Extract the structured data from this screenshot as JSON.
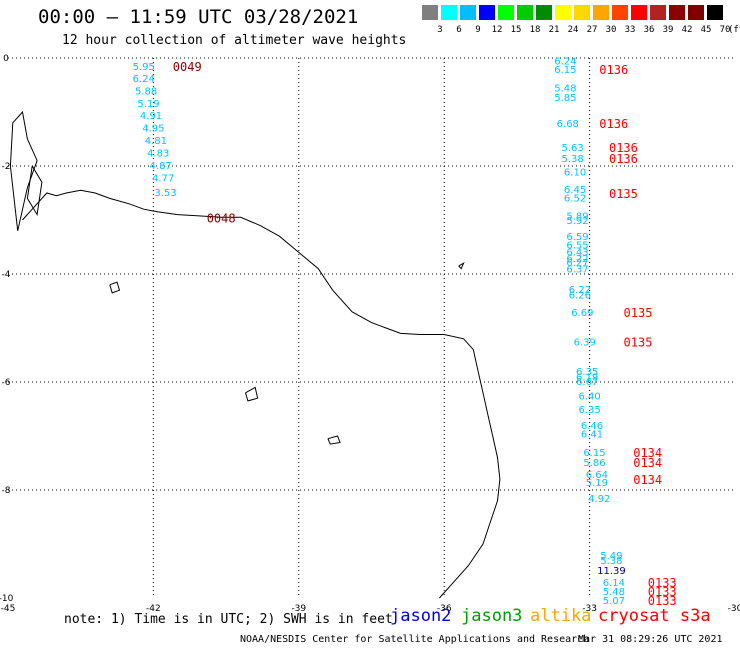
{
  "header": {
    "title": "00:00 – 11:59 UTC 03/28/2021",
    "subtitle": "12 hour collection of altimeter wave heights"
  },
  "legend": {
    "unit": "(ft)",
    "labels": [
      "3",
      "6",
      "9",
      "12",
      "15",
      "18",
      "21",
      "24",
      "27",
      "30",
      "33",
      "36",
      "39",
      "42",
      "45",
      "70"
    ],
    "colors": [
      "#7f7f7f",
      "#00ffff",
      "#00bfff",
      "#0000ff",
      "#00ff00",
      "#00cd00",
      "#008b00",
      "#ffff00",
      "#ffd700",
      "#ffa500",
      "#ff4500",
      "#ff0000",
      "#b22222",
      "#8b0000",
      "#800000",
      "#000000"
    ]
  },
  "axes": {
    "x_ticks": [
      "-45",
      "-42",
      "-39",
      "-36",
      "-33",
      "-30"
    ],
    "y_ticks": [
      "0",
      "-2",
      "-4",
      "-6",
      "-8",
      "-10"
    ]
  },
  "colors": {
    "wave_label": "#00c4ff",
    "wave_label_dark": "#00008b",
    "pass_jason3": "#8b0000",
    "pass_cryosat": "#ff0000",
    "coast": "#000000",
    "grid": "#000000"
  },
  "passes": [
    {
      "label": "0049",
      "lon": -41.6,
      "lat": -0.15,
      "color": "#8b0000"
    },
    {
      "label": "0048",
      "lon": -40.9,
      "lat": -2.95,
      "color": "#8b0000"
    },
    {
      "label": "0136",
      "lon": -32.8,
      "lat": -0.2,
      "color": "#ff0000"
    },
    {
      "label": "0136",
      "lon": -32.8,
      "lat": -1.2,
      "color": "#ff0000"
    },
    {
      "label": "0136",
      "lon": -32.6,
      "lat": -1.65,
      "color": "#ff0000"
    },
    {
      "label": "0136",
      "lon": -32.6,
      "lat": -1.85,
      "color": "#ff0000"
    },
    {
      "label": "0135",
      "lon": -32.6,
      "lat": -2.5,
      "color": "#ff0000"
    },
    {
      "label": "0135",
      "lon": -32.3,
      "lat": -4.7,
      "color": "#ff0000"
    },
    {
      "label": "0135",
      "lon": -32.3,
      "lat": -5.25,
      "color": "#ff0000"
    },
    {
      "label": "0134",
      "lon": -32.1,
      "lat": -7.3,
      "color": "#ff0000"
    },
    {
      "label": "0134",
      "lon": -32.1,
      "lat": -7.48,
      "color": "#ff0000"
    },
    {
      "label": "0134",
      "lon": -32.1,
      "lat": -7.8,
      "color": "#ff0000"
    },
    {
      "label": "0133",
      "lon": -31.8,
      "lat": -9.7,
      "color": "#ff0000"
    },
    {
      "label": "0133",
      "lon": -31.8,
      "lat": -9.87,
      "color": "#ff0000"
    },
    {
      "label": "0133",
      "lon": -31.8,
      "lat": -10.04,
      "color": "#ff0000"
    }
  ],
  "observations": [
    {
      "v": "5.95",
      "lon": -42.2,
      "lat": -0.15
    },
    {
      "v": "6.24",
      "lon": -42.2,
      "lat": -0.37
    },
    {
      "v": "5.88",
      "lon": -42.15,
      "lat": -0.6
    },
    {
      "v": "5.19",
      "lon": -42.1,
      "lat": -0.83
    },
    {
      "v": "4.91",
      "lon": -42.05,
      "lat": -1.06
    },
    {
      "v": "4.95",
      "lon": -42.0,
      "lat": -1.29
    },
    {
      "v": "4.81",
      "lon": -41.95,
      "lat": -1.52
    },
    {
      "v": "4.83",
      "lon": -41.9,
      "lat": -1.75
    },
    {
      "v": "4.87",
      "lon": -41.85,
      "lat": -1.98
    },
    {
      "v": "4.77",
      "lon": -41.8,
      "lat": -2.21
    },
    {
      "v": "3.53",
      "lon": -41.75,
      "lat": -2.48
    },
    {
      "v": "6.24",
      "lon": -33.5,
      "lat": -0.05
    },
    {
      "v": "6.15",
      "lon": -33.5,
      "lat": -0.2
    },
    {
      "v": "5.48",
      "lon": -33.5,
      "lat": -0.55
    },
    {
      "v": "5.85",
      "lon": -33.5,
      "lat": -0.72
    },
    {
      "v": "6.68",
      "lon": -33.45,
      "lat": -1.2
    },
    {
      "v": "5.63",
      "lon": -33.35,
      "lat": -1.65
    },
    {
      "v": "5.38",
      "lon": -33.35,
      "lat": -1.85
    },
    {
      "v": "6.10",
      "lon": -33.3,
      "lat": -2.1
    },
    {
      "v": "6.45",
      "lon": -33.3,
      "lat": -2.43
    },
    {
      "v": "6.52",
      "lon": -33.3,
      "lat": -2.58
    },
    {
      "v": "5.89",
      "lon": -33.25,
      "lat": -2.92
    },
    {
      "v": "5.92",
      "lon": -33.25,
      "lat": -3.0
    },
    {
      "v": "6.59",
      "lon": -33.25,
      "lat": -3.3
    },
    {
      "v": "6.55",
      "lon": -33.25,
      "lat": -3.45
    },
    {
      "v": "6.43",
      "lon": -33.25,
      "lat": -3.58
    },
    {
      "v": "6.22",
      "lon": -33.25,
      "lat": -3.7
    },
    {
      "v": "6.27",
      "lon": -33.25,
      "lat": -3.78
    },
    {
      "v": "6.37",
      "lon": -33.25,
      "lat": -3.9
    },
    {
      "v": "6.22",
      "lon": -33.2,
      "lat": -4.28
    },
    {
      "v": "6.26",
      "lon": -33.2,
      "lat": -4.38
    },
    {
      "v": "6.69",
      "lon": -33.15,
      "lat": -4.7
    },
    {
      "v": "6.39",
      "lon": -33.1,
      "lat": -5.25
    },
    {
      "v": "6.35",
      "lon": -33.05,
      "lat": -5.8
    },
    {
      "v": "6.19",
      "lon": -33.05,
      "lat": -5.9
    },
    {
      "v": "6.67",
      "lon": -33.05,
      "lat": -5.98
    },
    {
      "v": "6.40",
      "lon": -33.0,
      "lat": -6.25
    },
    {
      "v": "6.35",
      "lon": -33.0,
      "lat": -6.5
    },
    {
      "v": "6.46",
      "lon": -32.95,
      "lat": -6.8
    },
    {
      "v": "6.41",
      "lon": -32.95,
      "lat": -6.95
    },
    {
      "v": "6.15",
      "lon": -32.9,
      "lat": -7.3
    },
    {
      "v": "5.86",
      "lon": -32.9,
      "lat": -7.48
    },
    {
      "v": "6.64",
      "lon": -32.85,
      "lat": -7.7
    },
    {
      "v": "5.19",
      "lon": -32.85,
      "lat": -7.85
    },
    {
      "v": "4.92",
      "lon": -32.8,
      "lat": -8.15
    },
    {
      "v": "5.49",
      "lon": -32.55,
      "lat": -9.2
    },
    {
      "v": "5.38",
      "lon": -32.55,
      "lat": -9.3
    },
    {
      "v": "11.39",
      "lon": -32.55,
      "lat": -9.48,
      "dark": true
    },
    {
      "v": "6.14",
      "lon": -32.5,
      "lat": -9.7
    },
    {
      "v": "5.48",
      "lon": -32.5,
      "lat": -9.87
    },
    {
      "v": "5.07",
      "lon": -32.5,
      "lat": -10.04
    }
  ],
  "footer": {
    "note": "note: 1) Time is in UTC; 2) SWH is in feet",
    "satellites": [
      {
        "name": "jason2",
        "color": "#0000ee",
        "x": 390
      },
      {
        "name": "jason3",
        "color": "#00a000",
        "x": 461
      },
      {
        "name": "altika",
        "color": "#ffa500",
        "x": 530
      },
      {
        "name": "cryosat s3a",
        "color": "#ff0000",
        "x": 598
      }
    ],
    "credit": "NOAA/NESDIS Center for Satellite Applications and Research",
    "timestamp": "Mar 31 08:29:26 UTC 2021"
  }
}
